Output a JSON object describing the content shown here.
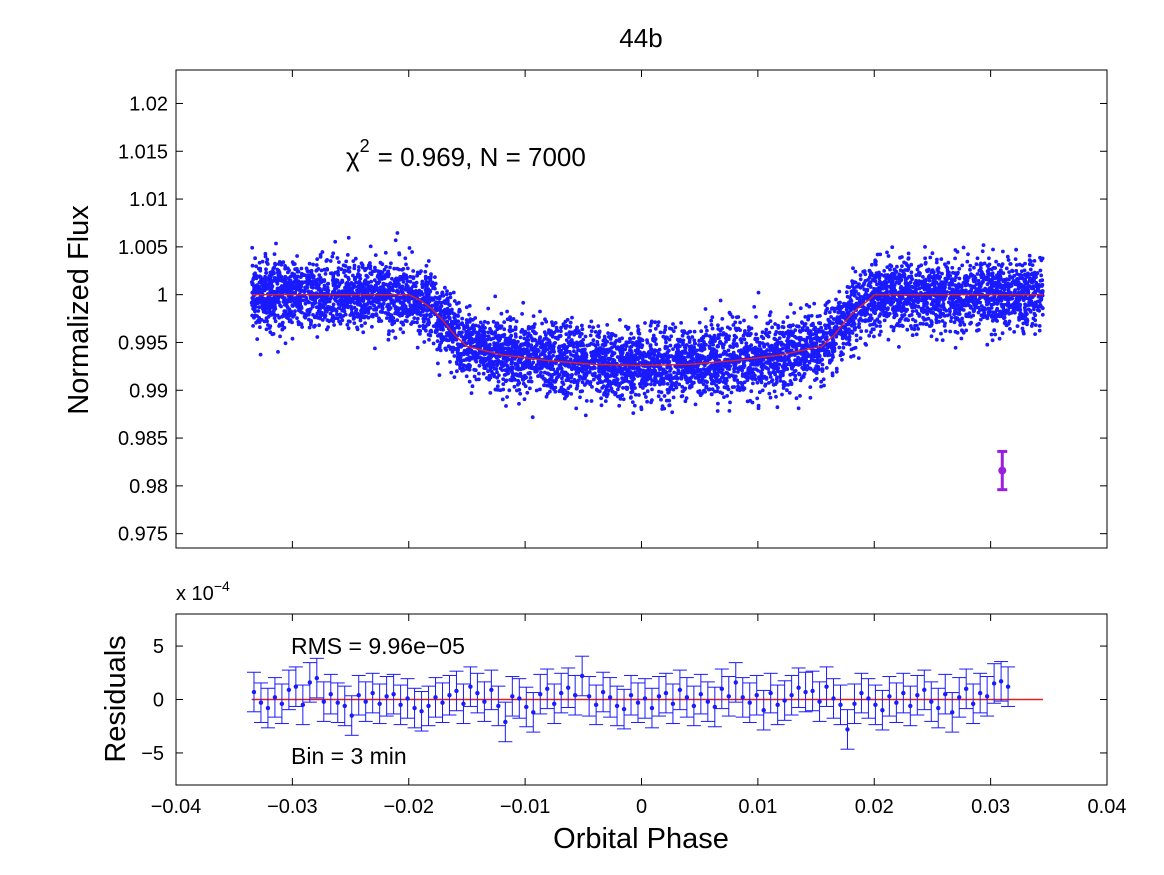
{
  "chart_data": [
    {
      "type": "scatter",
      "title": "44b",
      "ylabel": "Normalized Flux",
      "xlabel": "",
      "xlim": [
        -0.04,
        0.04
      ],
      "ylim": [
        0.9735,
        1.0235
      ],
      "ytick_values": [
        0.975,
        0.98,
        0.985,
        0.99,
        0.995,
        1,
        1.005,
        1.01,
        1.015,
        1.02
      ],
      "ytick_labels": [
        "0.975",
        "0.98",
        "0.985",
        "0.99",
        "0.995",
        "1",
        "1.005",
        "1.01",
        "1.015",
        "1.02"
      ],
      "annotation_chi": "χ",
      "annotation_chi_exp": "2",
      "annotation_rest": "= 0.969, N = 7000",
      "series": [
        {
          "name": "observations",
          "color": "#1a1aff",
          "n_points": 7000,
          "x_range": [
            -0.0335,
            0.0345
          ],
          "baseline": 1.0,
          "baseline_scatter": 0.0018
        },
        {
          "name": "transit model",
          "color": "#dd2222",
          "x": [
            -0.0335,
            -0.02,
            -0.019,
            -0.018,
            -0.017,
            -0.016,
            -0.015,
            -0.012,
            -0.008,
            -0.004,
            0.0,
            0.004,
            0.008,
            0.012,
            0.0155,
            0.0165,
            0.0175,
            0.0185,
            0.0195,
            0.02,
            0.0345
          ],
          "y": [
            1.0,
            1.0,
            0.9994,
            0.9985,
            0.9972,
            0.9957,
            0.9946,
            0.9937,
            0.9931,
            0.9927,
            0.9926,
            0.9927,
            0.9931,
            0.9937,
            0.9946,
            0.9957,
            0.9972,
            0.9985,
            0.9994,
            1.0,
            1.0
          ]
        },
        {
          "name": "typical error",
          "color": "#9a1ee0",
          "x": [
            0.031
          ],
          "y": [
            0.9816
          ],
          "yerr": [
            0.002
          ]
        }
      ]
    },
    {
      "type": "scatter",
      "title": "",
      "ylabel": "Residuals",
      "xlabel": "Orbital Phase",
      "xlim": [
        -0.04,
        0.04
      ],
      "ylim": [
        -8,
        8
      ],
      "y_multiplier": "x 10",
      "y_multiplier_exp": "−4",
      "ytick_values": [
        -5,
        0,
        5
      ],
      "ytick_labels": [
        "−5",
        "0",
        "5"
      ],
      "xtick_values": [
        -0.04,
        -0.03,
        -0.02,
        -0.01,
        0,
        0.01,
        0.02,
        0.03,
        0.04
      ],
      "xtick_labels": [
        "−0.04",
        "−0.03",
        "−0.02",
        "−0.01",
        "0",
        "0.01",
        "0.02",
        "0.03",
        "0.04"
      ],
      "annotation_rms": "RMS = 9.96e−05",
      "annotation_bin": "Bin = 3 min",
      "series": [
        {
          "name": "binned residuals",
          "color": "#1a1aff",
          "x_start": -0.0333,
          "x_step": 0.0006,
          "errbar": 1.85,
          "values": [
            0.7,
            -0.3,
            -0.8,
            0.2,
            -0.4,
            0.9,
            1.2,
            -0.5,
            1.6,
            2.0,
            -0.2,
            0.5,
            -0.3,
            -0.6,
            -1.5,
            0.4,
            -0.2,
            0.6,
            -0.4,
            0.3,
            0.5,
            -0.5,
            0.1,
            -0.8,
            -1.1,
            -0.6,
            0.2,
            -0.3,
            0.4,
            0.8,
            -0.4,
            1.2,
            0.6,
            -0.2,
            0.9,
            -0.6,
            -2.1,
            0.3,
            0.1,
            -0.7,
            -1.2,
            0.5,
            1.0,
            -0.4,
            0.6,
            1.1,
            0.4,
            2.2,
            0.3,
            -0.5,
            0.7,
            0.2,
            -0.6,
            -0.9,
            0.4,
            -0.3,
            0.1,
            -0.8,
            0.3,
            0.6,
            -0.4,
            0.9,
            0.2,
            -0.6,
            0.5,
            -0.2,
            -0.7,
            1.0,
            0.3,
            1.6,
            0.2,
            -0.3,
            0.4,
            -1.0,
            0.6,
            -0.5,
            -0.1,
            0.4,
            1.1,
            0.7,
            0.8,
            -0.2,
            1.2,
            0.1,
            -0.5,
            -2.8,
            -0.4,
            0.6,
            0.1,
            -0.5,
            -1.0,
            0.3,
            -0.3,
            0.6,
            -0.6,
            0.4,
            0.9,
            -0.2,
            -0.8,
            0.5,
            -1.2,
            0.2,
            1.0,
            -0.4,
            0.6,
            0.3,
            1.5,
            1.7,
            1.2
          ]
        },
        {
          "name": "zero line",
          "color": "#dd2222",
          "x": [
            -0.0335,
            0.0345
          ],
          "y": [
            0,
            0
          ]
        }
      ]
    }
  ]
}
